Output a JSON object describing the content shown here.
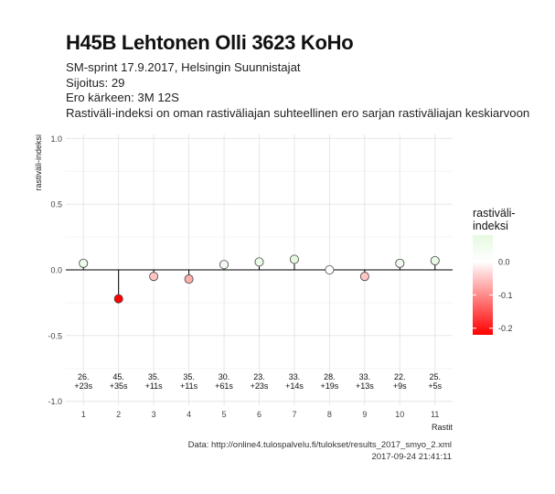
{
  "header": {
    "title": "H45B Lehtonen Olli 3623 KoHo",
    "subtitle_lines": [
      "SM-sprint 17.9.2017, Helsingin Suunnistajat",
      "Sijoitus: 29",
      "Ero kärkeen: 3M 12S",
      "Rastiväli-indeksi on oman rastiväliajan suhteellinen ero sarjan rastiväliajan keskiarvoon"
    ]
  },
  "caption": {
    "source": "Data: http://online4.tulospalvelu.fi/tulokset/results_2017_smyo_2.xml",
    "timestamp": "2017-09-24 21:41:11"
  },
  "chart_data": {
    "type": "scatter",
    "title": "",
    "xlabel": "Rastit",
    "ylabel": "rastiväli-indeksi",
    "x": [
      1,
      2,
      3,
      4,
      5,
      6,
      7,
      8,
      9,
      10,
      11
    ],
    "xticks": [
      "1",
      "2",
      "3",
      "4",
      "5",
      "6",
      "7",
      "8",
      "9",
      "10",
      "11"
    ],
    "values": [
      0.05,
      -0.22,
      -0.05,
      -0.07,
      0.04,
      0.06,
      0.08,
      0.0,
      -0.05,
      0.05,
      0.07
    ],
    "annotations": [
      [
        "26.",
        "+23s"
      ],
      [
        "45.",
        "+35s"
      ],
      [
        "35.",
        "+11s"
      ],
      [
        "35.",
        "+11s"
      ],
      [
        "30.",
        "+61s"
      ],
      [
        "23.",
        "+23s"
      ],
      [
        "33.",
        "+14s"
      ],
      [
        "28.",
        "+19s"
      ],
      [
        "33.",
        "+13s"
      ],
      [
        "22.",
        "+9s"
      ],
      [
        "25.",
        "+5s"
      ]
    ],
    "yticks": [
      1.0,
      0.5,
      0.0,
      -0.5,
      -1.0
    ],
    "ytick_labels": [
      "1.0",
      "0.5",
      "0.0",
      "-0.5",
      "-1.0"
    ],
    "ylim": [
      -1.03,
      1.03
    ],
    "xlim": [
      0.5,
      11.5
    ],
    "grid": true,
    "legend": {
      "title": "rastiväli-\nindeksi",
      "placement": "right",
      "range": [
        -0.22,
        0.08
      ],
      "tick_values": [
        0.0,
        -0.1,
        -0.2
      ],
      "tick_labels": [
        "0.0",
        "-0.1",
        "-0.2"
      ],
      "colors": {
        "high": "#e6f9e0",
        "mid": "#ffffff",
        "low": "#ff0000"
      }
    },
    "colors": {
      "panel": "#ffffff",
      "grid": "#e4e4e4",
      "zero_line": "#000000",
      "point_stroke": "#444444"
    }
  }
}
